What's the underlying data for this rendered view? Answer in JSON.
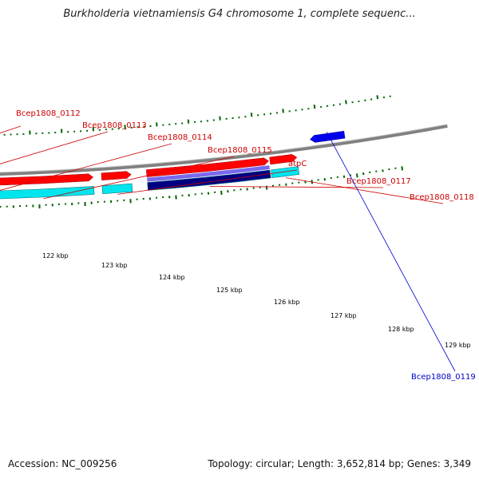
{
  "title": "Burkholderia vietnamiensis G4 chromosome 1, complete sequenc...",
  "footer": {
    "accession": "Accession: NC_009256",
    "summary": "Topology: circular; Length: 3,652,814 bp; Genes: 3,349"
  },
  "colors": {
    "cds_forward": "#ff0000",
    "gene_forward": "#00e5ee",
    "gene_highlight": "#000080",
    "cds_highlight": "#7b68ee",
    "cds_reverse": "#0000ee",
    "backbone": "#808080",
    "gc_ticks": "#006400",
    "label_forward": "#cc0000",
    "label_reverse": "#0000cc"
  },
  "genes": [
    {
      "name": "Bcep1808_0112",
      "strand": "+",
      "start_kbp": 120.6,
      "end_kbp": 121.2
    },
    {
      "name": "Bcep1808_0113",
      "strand": "+",
      "start_kbp": 121.22,
      "end_kbp": 122.86
    },
    {
      "name": "Bcep1808_0114",
      "strand": "+",
      "start_kbp": 122.88,
      "end_kbp": 123.86
    },
    {
      "name": "Bcep1808_0115",
      "strand": "+",
      "start_kbp": 123.88,
      "end_kbp": 125.45
    },
    {
      "name": "atpC",
      "strand": "+",
      "start_kbp": 125.58,
      "end_kbp": 126.04
    },
    {
      "name": "Bcep1808_0117",
      "strand": "+",
      "start_kbp": 126.28,
      "end_kbp": 128.18,
      "highlight": true
    },
    {
      "name": "Bcep1808_0118",
      "strand": "+",
      "start_kbp": 128.2,
      "end_kbp": 128.62
    },
    {
      "name": "Bcep1808_0119",
      "strand": "-",
      "start_kbp": 128.86,
      "end_kbp": 129.4
    }
  ],
  "kbp_ticks": [
    "122 kbp",
    "123 kbp",
    "124 kbp",
    "125 kbp",
    "126 kbp",
    "127 kbp",
    "128 kbp",
    "129 kbp"
  ]
}
